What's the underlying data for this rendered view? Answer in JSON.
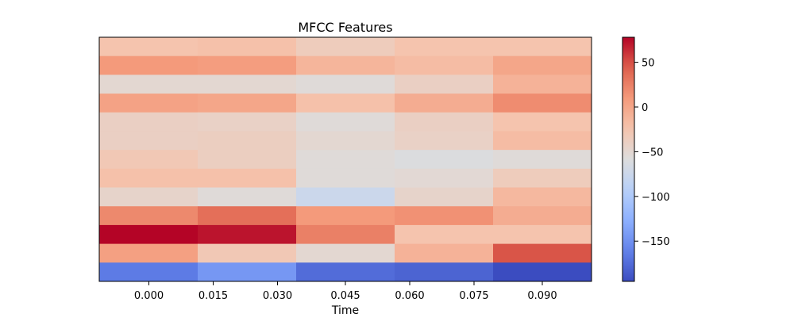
{
  "chart_data": {
    "type": "heatmap",
    "title": "MFCC Features",
    "xlabel": "Time",
    "ylabel": "",
    "colormap": "coolwarm",
    "x_tick_labels": [
      "0.000",
      "0.015",
      "0.030",
      "0.045",
      "0.060",
      "0.075",
      "0.090"
    ],
    "y_ticks": "none",
    "colorbar": {
      "range": [
        -195,
        78
      ],
      "tick_labels": [
        "50",
        "0",
        "−50",
        "−100",
        "−150"
      ],
      "tick_values": [
        50,
        0,
        -50,
        -100,
        -150
      ]
    },
    "columns": 5,
    "rows_top_to_bottom": [
      [
        -25,
        -22,
        -35,
        -25,
        -25
      ],
      [
        10,
        7,
        -12,
        -18,
        0
      ],
      [
        -50,
        -50,
        -55,
        -40,
        -10
      ],
      [
        3,
        0,
        -22,
        -5,
        18
      ],
      [
        -40,
        -42,
        -55,
        -40,
        -25
      ],
      [
        -40,
        -38,
        -50,
        -42,
        -18
      ],
      [
        -30,
        -38,
        -55,
        -60,
        -55
      ],
      [
        -22,
        -22,
        -55,
        -52,
        -35
      ],
      [
        -45,
        -55,
        -75,
        -45,
        -15
      ],
      [
        20,
        35,
        10,
        15,
        -5
      ],
      [
        78,
        72,
        25,
        -25,
        -25
      ],
      [
        5,
        -30,
        -50,
        -10,
        48
      ],
      [
        -165,
        -145,
        -175,
        -180,
        -195
      ]
    ]
  }
}
